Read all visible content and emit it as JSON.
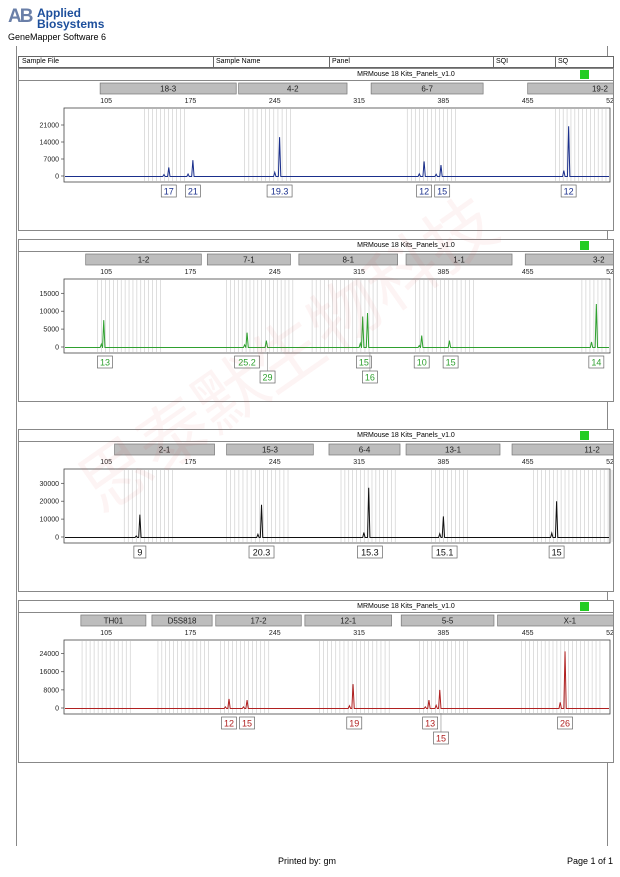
{
  "brand": {
    "line1": "Applied",
    "line2": "Biosystems",
    "mark": "AB"
  },
  "software": "GeneMapper Software 6",
  "columns": [
    "Sample File",
    "Sample Name",
    "Panel",
    "SQI",
    "SQ"
  ],
  "watermark_text": "思泰默生物科技",
  "footer": {
    "printed_by": "Printed by: gm",
    "page": "Page 1 of 1"
  },
  "colors": {
    "blue": "#1a2f8c",
    "green": "#2fa02f",
    "black": "#111111",
    "red": "#b02020",
    "sq_ok": "#22cc22"
  },
  "panels": [
    {
      "title": "MRMouse 18 Kits_Panels_v1.0",
      "color": "#1a2f8c",
      "yticks": [
        "21000",
        "14000",
        "7000",
        "0"
      ],
      "ymax": 28000,
      "bins": [
        [
          "18-3",
          100,
          213
        ],
        [
          "4-2",
          215,
          305
        ],
        [
          "6-7",
          325,
          418
        ],
        [
          "19-2",
          455,
          575
        ]
      ],
      "peaks": [
        [
          157,
          3500
        ],
        [
          177,
          6500
        ],
        [
          249,
          16000
        ],
        [
          369,
          6000
        ],
        [
          383,
          4500
        ],
        [
          489,
          20500
        ]
      ],
      "minor": [
        [
          153,
          600
        ],
        [
          173,
          800
        ],
        [
          245,
          1500
        ],
        [
          365,
          900
        ],
        [
          379,
          700
        ],
        [
          485,
          2200
        ]
      ],
      "labels": [
        [
          157,
          "17",
          0
        ],
        [
          177,
          "21",
          0
        ],
        [
          249,
          "19.3",
          0
        ],
        [
          369,
          "12",
          0
        ],
        [
          384,
          "15",
          0
        ],
        [
          489,
          "12",
          0
        ]
      ],
      "ladder": [
        [
          137,
          170
        ],
        [
          220,
          258
        ],
        [
          355,
          395
        ],
        [
          478,
          520
        ]
      ]
    },
    {
      "title": "MRMouse 18 Kits_Panels_v1.0",
      "color": "#2fa02f",
      "yticks": [
        "15000",
        "10000",
        "5000",
        "0"
      ],
      "ymax": 19000,
      "bins": [
        [
          "1-2",
          88,
          184
        ],
        [
          "7-1",
          189,
          258
        ],
        [
          "8-1",
          265,
          347
        ],
        [
          "1-1",
          354,
          442
        ],
        [
          "3-2",
          453,
          575
        ]
      ],
      "peaks": [
        [
          103,
          7500
        ],
        [
          222,
          4000
        ],
        [
          238,
          1800
        ],
        [
          318,
          8500
        ],
        [
          322,
          9500
        ],
        [
          367,
          3200
        ],
        [
          390,
          1800
        ],
        [
          512,
          12000
        ]
      ],
      "minor": [
        [
          101,
          800
        ],
        [
          220,
          600
        ],
        [
          316,
          1000
        ],
        [
          365,
          400
        ],
        [
          508,
          1400
        ]
      ],
      "labels": [
        [
          104,
          "13",
          0
        ],
        [
          222,
          "25.2",
          0
        ],
        [
          239,
          "29",
          1
        ],
        [
          319,
          "15",
          0
        ],
        [
          324,
          "16",
          1
        ],
        [
          367,
          "10",
          0
        ],
        [
          391,
          "15",
          0
        ],
        [
          512,
          "14",
          0
        ]
      ],
      "ladder": [
        [
          98,
          150
        ],
        [
          205,
          260
        ],
        [
          276,
          330
        ],
        [
          362,
          410
        ],
        [
          500,
          540
        ]
      ]
    },
    {
      "title": "MRMouse 18 Kits_Panels_v1.0",
      "color": "#111111",
      "yticks": [
        "30000",
        "20000",
        "10000",
        "0"
      ],
      "ymax": 38000,
      "bins": [
        [
          "2-1",
          112,
          195
        ],
        [
          "15-3",
          205,
          277
        ],
        [
          "6-4",
          290,
          349
        ],
        [
          "13-1",
          354,
          432
        ],
        [
          "11-2",
          442,
          575
        ]
      ],
      "peaks": [
        [
          133,
          12500
        ],
        [
          234,
          18000
        ],
        [
          323,
          27500
        ],
        [
          385,
          11500
        ],
        [
          479,
          20000
        ]
      ],
      "minor": [
        [
          130,
          600
        ],
        [
          231,
          1500
        ],
        [
          319,
          2500
        ],
        [
          382,
          1800
        ],
        [
          475,
          2200
        ]
      ],
      "labels": [
        [
          133,
          "9",
          0
        ],
        [
          234,
          "20.3",
          0
        ],
        [
          324,
          "15.3",
          0
        ],
        [
          386,
          "15.1",
          0
        ],
        [
          479,
          "15",
          0
        ]
      ],
      "ladder": [
        [
          120,
          160
        ],
        [
          205,
          256
        ],
        [
          300,
          345
        ],
        [
          375,
          405
        ],
        [
          460,
          525
        ]
      ]
    },
    {
      "title": "MRMouse 18 Kits_Panels_v1.0",
      "color": "#b02020",
      "yticks": [
        "24000",
        "16000",
        "8000",
        "0"
      ],
      "ymax": 30000,
      "bins": [
        [
          "TH01",
          84,
          138
        ],
        [
          "D5S818",
          143,
          193
        ],
        [
          "17-2",
          196,
          267
        ],
        [
          "12-1",
          270,
          342
        ],
        [
          "5-5",
          350,
          427
        ],
        [
          "X-1",
          430,
          550
        ]
      ],
      "peaks": [
        [
          207,
          4000
        ],
        [
          222,
          3500
        ],
        [
          310,
          10500
        ],
        [
          373,
          3500
        ],
        [
          382,
          8000
        ],
        [
          486,
          25000
        ]
      ],
      "minor": [
        [
          204,
          500
        ],
        [
          219,
          500
        ],
        [
          307,
          1000
        ],
        [
          370,
          500
        ],
        [
          379,
          1200
        ],
        [
          482,
          2500
        ]
      ],
      "labels": [
        [
          207,
          "12",
          0
        ],
        [
          222,
          "15",
          0
        ],
        [
          311,
          "19",
          0
        ],
        [
          374,
          "13",
          0
        ],
        [
          383,
          "15",
          1
        ],
        [
          486,
          "26",
          0
        ]
      ],
      "ladder": [
        [
          85,
          125
        ],
        [
          148,
          190
        ],
        [
          200,
          240
        ],
        [
          282,
          340
        ],
        [
          365,
          405
        ],
        [
          450,
          515
        ]
      ]
    }
  ],
  "xticks": [
    "105",
    "175",
    "245",
    "315",
    "385",
    "455",
    "525"
  ]
}
